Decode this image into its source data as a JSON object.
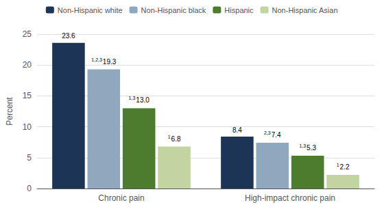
{
  "chart_data": {
    "type": "bar",
    "categories": [
      "Chronic pain",
      "High-impact chronic pain"
    ],
    "series": [
      {
        "name": "Non-Hispanic white",
        "color": "#1c3557",
        "values": [
          23.6,
          8.4
        ],
        "value_labels": [
          "23.6",
          "8.4"
        ],
        "superscripts": [
          null,
          null
        ]
      },
      {
        "name": "Non-Hispanic black",
        "color": "#8fa8be",
        "values": [
          19.3,
          7.4
        ],
        "value_labels": [
          "19.3",
          "7.4"
        ],
        "superscripts": [
          "1,2,3",
          "2,3"
        ]
      },
      {
        "name": "Hispanic",
        "color": "#4d7c2e",
        "values": [
          13.0,
          5.3
        ],
        "value_labels": [
          "13.0",
          "5.3"
        ],
        "superscripts": [
          "1,3",
          "1,3"
        ]
      },
      {
        "name": "Non-Hispanic Asian",
        "color": "#c2d5a0",
        "values": [
          6.8,
          2.2
        ],
        "value_labels": [
          "6.8",
          "2.2"
        ],
        "superscripts": [
          "1",
          "1"
        ]
      }
    ],
    "ylabel": "Percent",
    "ylim": [
      0,
      25
    ],
    "yticks": [
      0,
      5,
      10,
      15,
      20,
      25
    ],
    "grid": true,
    "legend": "top",
    "data_labels": true
  }
}
